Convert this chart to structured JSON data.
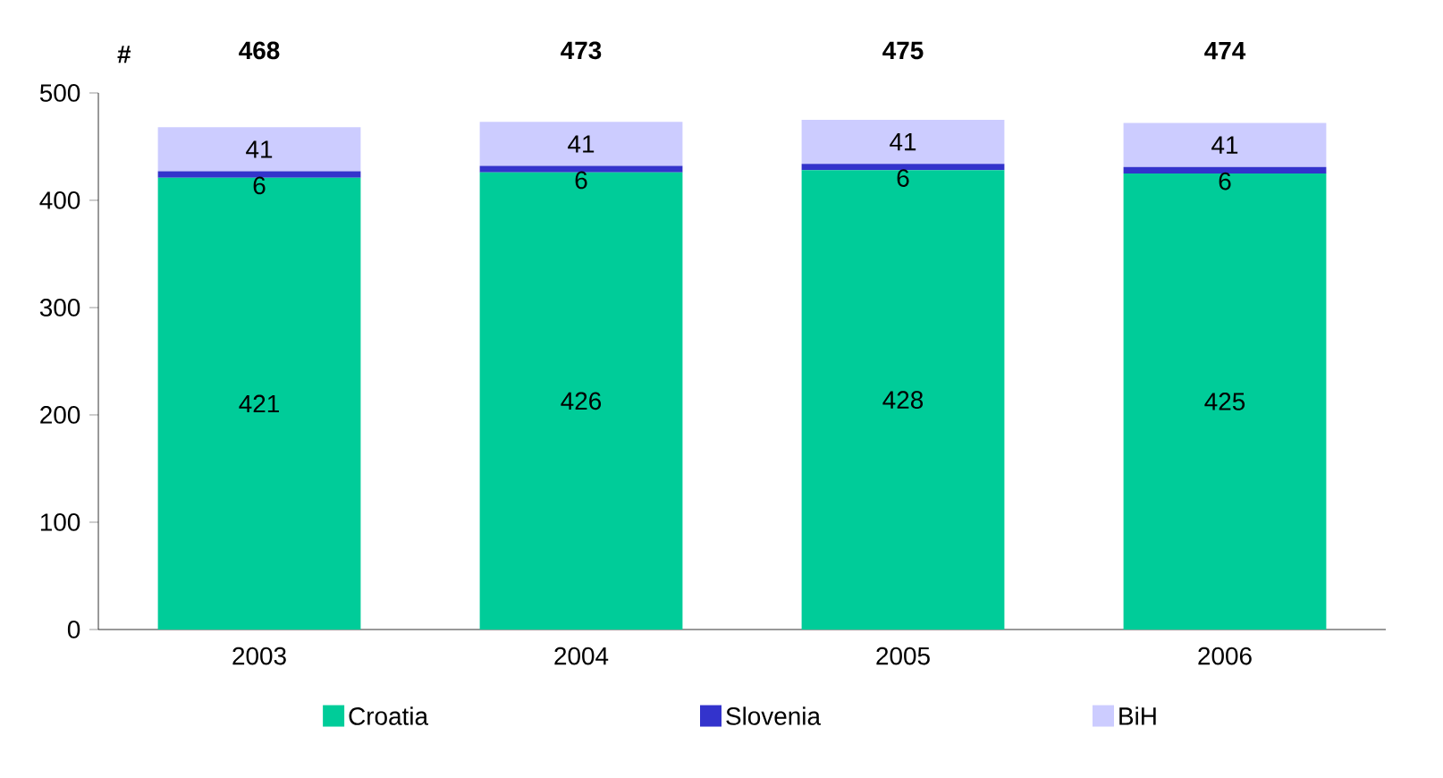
{
  "chart_data": {
    "type": "bar",
    "stacked": true,
    "ylabel": "#",
    "categories": [
      "2003",
      "2004",
      "2005",
      "2006"
    ],
    "series": [
      {
        "name": "Croatia",
        "color": "#00cc99",
        "values": [
          421,
          426,
          428,
          425
        ]
      },
      {
        "name": "Slovenia",
        "color": "#3333cc",
        "values": [
          6,
          6,
          6,
          6
        ]
      },
      {
        "name": "BiH",
        "color": "#ccccff",
        "values": [
          41,
          41,
          41,
          41
        ]
      }
    ],
    "totals": [
      "468",
      "473",
      "475",
      "474"
    ],
    "data_labels": true,
    "legend": "bottom",
    "grid": false,
    "ylim": [
      0,
      500
    ],
    "yticks": [
      0,
      100,
      200,
      300,
      400,
      500
    ]
  }
}
